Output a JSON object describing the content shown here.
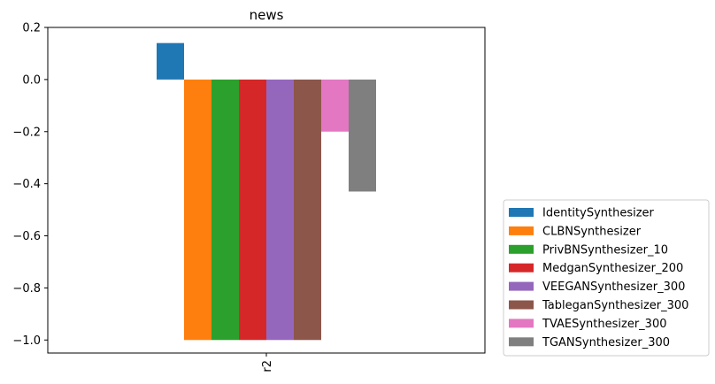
{
  "chart_data": {
    "type": "bar",
    "title": "news",
    "xlabel": "",
    "ylabel": "",
    "categories": [
      "r2"
    ],
    "ylim": [
      -1.05,
      0.2
    ],
    "yticks": [
      0.2,
      0.0,
      -0.2,
      -0.4,
      -0.6,
      -0.8,
      -1.0
    ],
    "ytick_labels": [
      "0.2",
      "0.0",
      "−0.2",
      "−0.4",
      "−0.6",
      "−0.8",
      "−1.0"
    ],
    "grid": false,
    "legend_position": "outside-right-bottom",
    "series": [
      {
        "name": "IdentitySynthesizer",
        "color": "#1f77b4",
        "values": [
          0.14
        ]
      },
      {
        "name": "CLBNSynthesizer",
        "color": "#ff7f0e",
        "values": [
          -1.0
        ]
      },
      {
        "name": "PrivBNSynthesizer_10",
        "color": "#2ca02c",
        "values": [
          -1.0
        ]
      },
      {
        "name": "MedganSynthesizer_200",
        "color": "#d62728",
        "values": [
          -1.0
        ]
      },
      {
        "name": "VEEGANSynthesizer_300",
        "color": "#9467bd",
        "values": [
          -1.0
        ]
      },
      {
        "name": "TableganSynthesizer_300",
        "color": "#8c564b",
        "values": [
          -1.0
        ]
      },
      {
        "name": "TVAESynthesizer_300",
        "color": "#e377c2",
        "values": [
          -0.2
        ]
      },
      {
        "name": "TGANSynthesizer_300",
        "color": "#7f7f7f",
        "values": [
          -0.43
        ]
      }
    ]
  }
}
